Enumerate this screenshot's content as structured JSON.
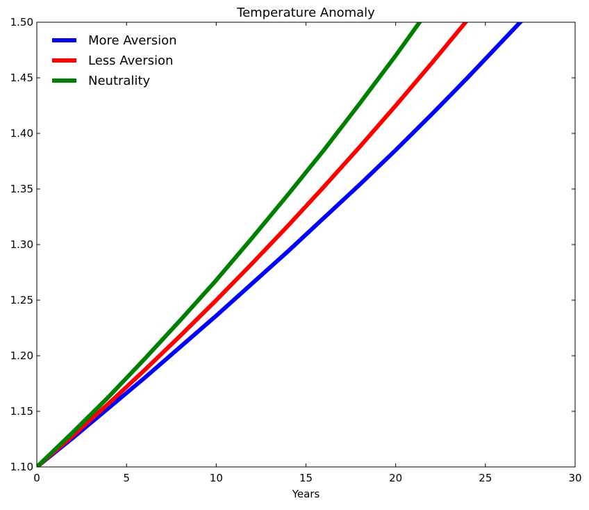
{
  "chart_data": {
    "type": "line",
    "title": "Temperature Anomaly",
    "xlabel": "Years",
    "ylabel": "",
    "xlim": [
      0,
      30
    ],
    "ylim": [
      1.1,
      1.5
    ],
    "xticks": [
      "0",
      "5",
      "10",
      "15",
      "20",
      "25",
      "30"
    ],
    "yticks": [
      "1.10",
      "1.15",
      "1.20",
      "1.25",
      "1.30",
      "1.35",
      "1.40",
      "1.45",
      "1.50"
    ],
    "grid": false,
    "legend_position": "top-left",
    "series": [
      {
        "name": "More Aversion",
        "color": "#0000ff",
        "x": [
          0,
          2,
          4,
          6,
          8,
          10,
          12,
          14,
          16,
          18,
          20,
          22,
          24,
          26,
          27
        ],
        "y": [
          1.1,
          1.126,
          1.153,
          1.18,
          1.208,
          1.236,
          1.265,
          1.294,
          1.324,
          1.354,
          1.385,
          1.417,
          1.45,
          1.484,
          1.501
        ]
      },
      {
        "name": "Less Aversion",
        "color": "#ff0000",
        "x": [
          0,
          2,
          4,
          6,
          8,
          10,
          12,
          14,
          16,
          18,
          20,
          22,
          24,
          24.5
        ],
        "y": [
          1.1,
          1.128,
          1.157,
          1.187,
          1.218,
          1.25,
          1.283,
          1.317,
          1.352,
          1.388,
          1.425,
          1.463,
          1.502,
          1.511
        ]
      },
      {
        "name": "Neutrality",
        "color": "#008000",
        "x": [
          0,
          2,
          4,
          6,
          8,
          10,
          12,
          14,
          16,
          18,
          20,
          22,
          22.3
        ],
        "y": [
          1.1,
          1.131,
          1.163,
          1.197,
          1.232,
          1.268,
          1.306,
          1.345,
          1.385,
          1.427,
          1.47,
          1.515,
          1.522
        ]
      }
    ]
  }
}
